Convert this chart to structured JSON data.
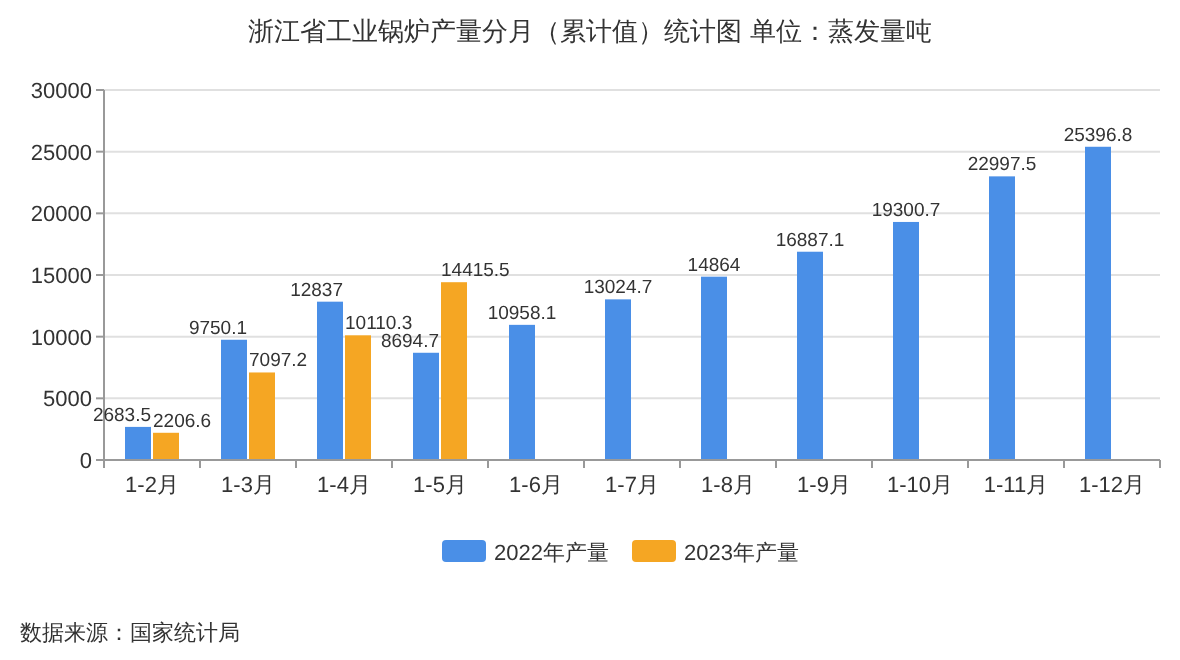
{
  "chart_data": {
    "type": "bar",
    "title": "浙江省工业锅炉产量分月（累计值）统计图 单位：蒸发量吨",
    "categories": [
      "1-2月",
      "1-3月",
      "1-4月",
      "1-5月",
      "1-6月",
      "1-7月",
      "1-8月",
      "1-9月",
      "1-10月",
      "1-11月",
      "1-12月"
    ],
    "series": [
      {
        "name": "2022年产量",
        "color": "#4a8fe7",
        "values": [
          2683.5,
          9750.1,
          12837,
          8694.7,
          10958.1,
          13024.7,
          14864,
          16887.1,
          19300.7,
          22997.5,
          25396.8
        ]
      },
      {
        "name": "2023年产量",
        "color": "#f5a623",
        "values": [
          2206.6,
          7097.2,
          10110.3,
          14415.5,
          null,
          null,
          null,
          null,
          null,
          null,
          null
        ]
      }
    ],
    "ylim": [
      0,
      30000
    ],
    "yticks": [
      0,
      5000,
      10000,
      15000,
      20000,
      25000,
      30000
    ],
    "grid": "y",
    "legend": "bottom",
    "data_labels": true,
    "annotations": [
      "数据来源：国家统计局"
    ]
  }
}
